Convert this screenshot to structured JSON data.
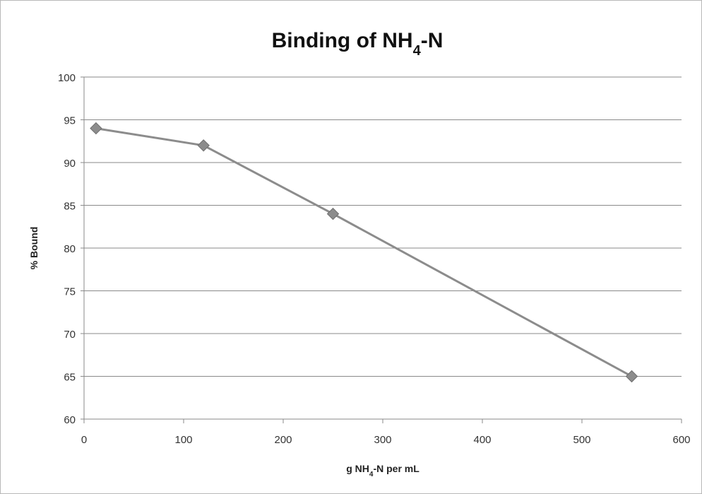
{
  "chart_data": {
    "type": "line",
    "title": {
      "main": "Binding of NH",
      "sub": "4",
      "suffix": "-N"
    },
    "xlabel": {
      "main": "g NH",
      "sub": "4",
      "suffix": "-N per mL"
    },
    "ylabel": "% Bound",
    "xlim": [
      0,
      600
    ],
    "ylim": [
      60,
      100
    ],
    "x_ticks": [
      0,
      100,
      200,
      300,
      400,
      500,
      600
    ],
    "y_ticks": [
      60,
      65,
      70,
      75,
      80,
      85,
      90,
      95,
      100
    ],
    "grid": true,
    "legend": "none",
    "series": [
      {
        "x": [
          12,
          120,
          250,
          550
        ],
        "y": [
          94,
          92,
          84,
          65
        ],
        "marker": "diamond",
        "color": "#8c8c8c"
      }
    ]
  }
}
